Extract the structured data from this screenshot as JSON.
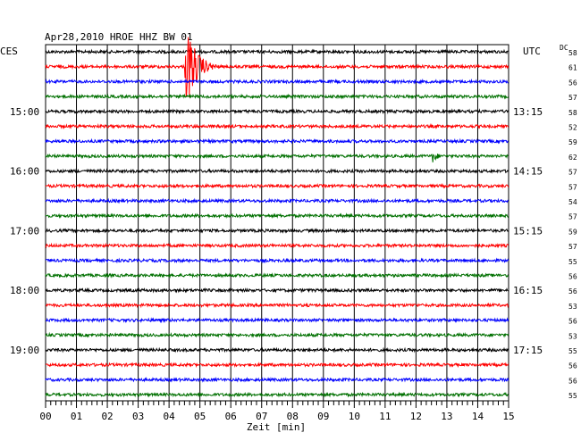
{
  "chart_data": {
    "type": "line",
    "title": "Apr28,2010   HROE HHZ BW 01",
    "left_zone_label": "CES",
    "right_zone_label": "UTC",
    "dc_header": "DC",
    "xlabel": "Zeit [min]",
    "xlim": [
      0,
      15
    ],
    "x_ticks": [
      "00",
      "01",
      "02",
      "03",
      "04",
      "05",
      "06",
      "07",
      "08",
      "09",
      "10",
      "11",
      "12",
      "13",
      "14",
      "15"
    ],
    "trace_minutes": 15,
    "trace_colors": [
      "#000000",
      "#ff0000",
      "#0000ff",
      "#007000"
    ],
    "traces_count": 24,
    "left_time_labels": [
      {
        "trace": 4,
        "text": "15:00"
      },
      {
        "trace": 8,
        "text": "16:00"
      },
      {
        "trace": 12,
        "text": "17:00"
      },
      {
        "trace": 16,
        "text": "18:00"
      },
      {
        "trace": 20,
        "text": "19:00"
      }
    ],
    "right_time_labels": [
      {
        "trace": 4,
        "text": "13:15"
      },
      {
        "trace": 8,
        "text": "14:15"
      },
      {
        "trace": 12,
        "text": "15:15"
      },
      {
        "trace": 16,
        "text": "16:15"
      },
      {
        "trace": 20,
        "text": "17:15"
      }
    ],
    "dc_values": [
      "58",
      "61",
      "56",
      "57",
      "58",
      "52",
      "59",
      "62",
      "57",
      "57",
      "54",
      "57",
      "59",
      "57",
      "55",
      "56",
      "56",
      "53",
      "56",
      "53",
      "55",
      "56",
      "56",
      "55"
    ],
    "events": [
      {
        "trace": 1,
        "start_min": 4.5,
        "end_min": 5.8,
        "amplitude": "large"
      },
      {
        "trace": 7,
        "start_min": 12.5,
        "end_min": 13.1,
        "amplitude": "medium"
      }
    ]
  }
}
